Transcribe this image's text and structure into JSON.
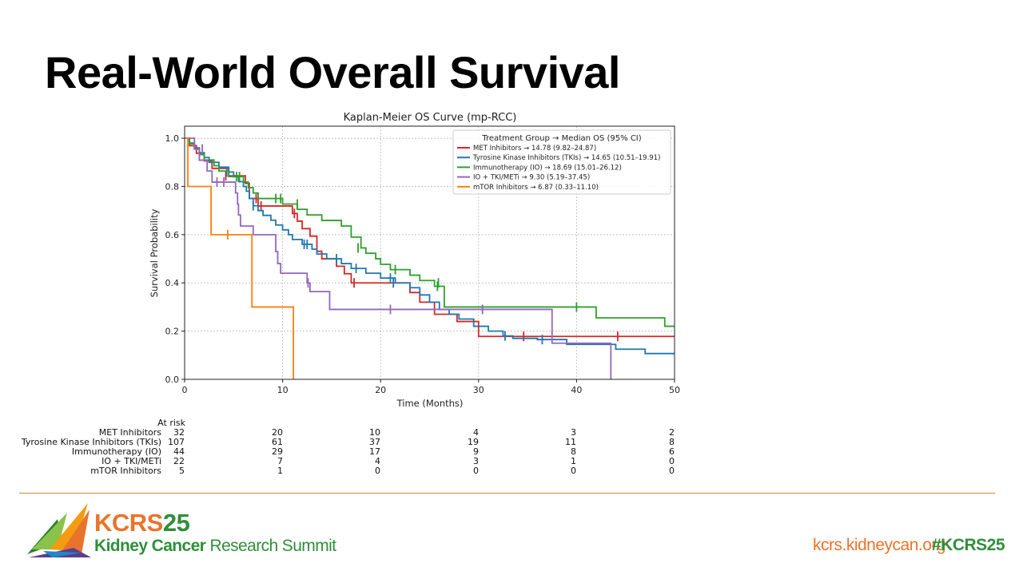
{
  "slide": {
    "title": "Real-World Overall Survival"
  },
  "chart_data": {
    "type": "line",
    "title": "Kaplan-Meier OS Curve (mp-RCC)",
    "xlabel": "Time (Months)",
    "ylabel": "Survival Probability",
    "xlim": [
      0,
      50
    ],
    "ylim": [
      0,
      1.05
    ],
    "xticks": [
      0,
      10,
      20,
      30,
      40,
      50
    ],
    "yticks": [
      0.0,
      0.2,
      0.4,
      0.6,
      0.8,
      1.0
    ],
    "grid": true,
    "legend": {
      "title": "Treatment Group → Median OS (95% CI)",
      "placement": "top-right"
    },
    "series": [
      {
        "name": "MET Inhibitors → 14.78 (9.82–24.87)",
        "color": "#d62728",
        "steps": [
          [
            0,
            1.0
          ],
          [
            0.5,
            0.969
          ],
          [
            1.2,
            0.938
          ],
          [
            2.0,
            0.906
          ],
          [
            2.8,
            0.875
          ],
          [
            4.5,
            0.844
          ],
          [
            6.2,
            0.813
          ],
          [
            6.6,
            0.75
          ],
          [
            7.5,
            0.719
          ],
          [
            11.0,
            0.688
          ],
          [
            11.5,
            0.656
          ],
          [
            12.0,
            0.625
          ],
          [
            12.8,
            0.594
          ],
          [
            13.5,
            0.531
          ],
          [
            14.0,
            0.5
          ],
          [
            15.5,
            0.469
          ],
          [
            16.3,
            0.438
          ],
          [
            17.0,
            0.4
          ],
          [
            23.0,
            0.36
          ],
          [
            24.0,
            0.32
          ],
          [
            25.5,
            0.27
          ],
          [
            27.8,
            0.24
          ],
          [
            30.0,
            0.178
          ],
          [
            50,
            0.178
          ]
        ],
        "censors": [
          [
            1.5,
            0.938
          ],
          [
            4.2,
            0.844
          ],
          [
            7.3,
            0.75
          ],
          [
            7.8,
            0.719
          ],
          [
            11.2,
            0.688
          ],
          [
            17.3,
            0.4
          ],
          [
            34.6,
            0.178
          ],
          [
            44.2,
            0.178
          ]
        ]
      },
      {
        "name": "Tyrosine Kinase Inhibitors (TKIs) → 14.65 (10.51–19.91)",
        "color": "#1f77b4",
        "steps": [
          [
            0,
            1.0
          ],
          [
            0.5,
            0.98
          ],
          [
            1.0,
            0.96
          ],
          [
            1.5,
            0.94
          ],
          [
            2.0,
            0.92
          ],
          [
            2.5,
            0.9
          ],
          [
            3.5,
            0.88
          ],
          [
            4.5,
            0.86
          ],
          [
            5.0,
            0.84
          ],
          [
            5.5,
            0.82
          ],
          [
            6.0,
            0.8
          ],
          [
            6.3,
            0.78
          ],
          [
            6.6,
            0.75
          ],
          [
            7.0,
            0.72
          ],
          [
            7.5,
            0.7
          ],
          [
            8.0,
            0.68
          ],
          [
            8.8,
            0.66
          ],
          [
            9.3,
            0.64
          ],
          [
            10.0,
            0.62
          ],
          [
            10.6,
            0.6
          ],
          [
            11.0,
            0.58
          ],
          [
            12.0,
            0.56
          ],
          [
            13.0,
            0.54
          ],
          [
            13.5,
            0.52
          ],
          [
            14.5,
            0.5
          ],
          [
            16.0,
            0.48
          ],
          [
            17.0,
            0.46
          ],
          [
            18.5,
            0.44
          ],
          [
            20.0,
            0.42
          ],
          [
            21.5,
            0.4
          ],
          [
            23.0,
            0.38
          ],
          [
            24.0,
            0.35
          ],
          [
            25.0,
            0.32
          ],
          [
            26.0,
            0.29
          ],
          [
            27.0,
            0.27
          ],
          [
            28.0,
            0.25
          ],
          [
            29.5,
            0.22
          ],
          [
            31.0,
            0.2
          ],
          [
            32.5,
            0.18
          ],
          [
            33.5,
            0.17
          ],
          [
            36.0,
            0.165
          ],
          [
            39.0,
            0.145
          ],
          [
            44.0,
            0.125
          ],
          [
            47.0,
            0.107
          ],
          [
            50,
            0.107
          ]
        ],
        "censors": [
          [
            4.3,
            0.86
          ],
          [
            7.0,
            0.72
          ],
          [
            12.2,
            0.56
          ],
          [
            12.5,
            0.56
          ],
          [
            15.5,
            0.5
          ],
          [
            17.5,
            0.46
          ],
          [
            21.0,
            0.42
          ],
          [
            21.3,
            0.4
          ],
          [
            32.7,
            0.18
          ],
          [
            36.5,
            0.165
          ]
        ]
      },
      {
        "name": "Immunotherapy (IO) → 18.69 (15.01–26.12)",
        "color": "#2ca02c",
        "steps": [
          [
            0,
            1.0
          ],
          [
            0.5,
            0.977
          ],
          [
            1.0,
            0.955
          ],
          [
            1.5,
            0.932
          ],
          [
            2.0,
            0.91
          ],
          [
            3.0,
            0.886
          ],
          [
            3.5,
            0.864
          ],
          [
            4.5,
            0.841
          ],
          [
            6.0,
            0.818
          ],
          [
            6.5,
            0.795
          ],
          [
            7.0,
            0.773
          ],
          [
            7.5,
            0.75
          ],
          [
            10.0,
            0.727
          ],
          [
            11.5,
            0.705
          ],
          [
            12.5,
            0.682
          ],
          [
            14.0,
            0.659
          ],
          [
            16.0,
            0.636
          ],
          [
            17.0,
            0.59
          ],
          [
            18.0,
            0.545
          ],
          [
            18.5,
            0.523
          ],
          [
            19.5,
            0.5
          ],
          [
            20.0,
            0.477
          ],
          [
            21.0,
            0.455
          ],
          [
            23.0,
            0.432
          ],
          [
            24.0,
            0.41
          ],
          [
            25.5,
            0.386
          ],
          [
            26.5,
            0.3
          ],
          [
            37.5,
            0.3
          ],
          [
            42.0,
            0.255
          ],
          [
            49.0,
            0.22
          ],
          [
            50,
            0.22
          ]
        ],
        "censors": [
          [
            5.3,
            0.841
          ],
          [
            5.6,
            0.841
          ],
          [
            9.3,
            0.75
          ],
          [
            9.8,
            0.75
          ],
          [
            11.5,
            0.727
          ],
          [
            17.7,
            0.545
          ],
          [
            21.5,
            0.455
          ],
          [
            25.8,
            0.386
          ],
          [
            25.9,
            0.4
          ],
          [
            40.0,
            0.3
          ]
        ]
      },
      {
        "name": "IO + TKI/METi → 9.30 (5.19–37.45)",
        "color": "#9467bd",
        "steps": [
          [
            0,
            1.0
          ],
          [
            1.0,
            0.955
          ],
          [
            1.5,
            0.909
          ],
          [
            2.3,
            0.864
          ],
          [
            2.8,
            0.818
          ],
          [
            5.2,
            0.773
          ],
          [
            5.4,
            0.727
          ],
          [
            5.5,
            0.682
          ],
          [
            5.7,
            0.636
          ],
          [
            7.0,
            0.6
          ],
          [
            9.3,
            0.53
          ],
          [
            9.5,
            0.48
          ],
          [
            9.8,
            0.44
          ],
          [
            12.5,
            0.4
          ],
          [
            12.8,
            0.364
          ],
          [
            14.8,
            0.29
          ],
          [
            37.5,
            0.15
          ],
          [
            43.5,
            0.0
          ]
        ],
        "censors": [
          [
            1.8,
            0.955
          ],
          [
            3.3,
            0.818
          ],
          [
            4.0,
            0.818
          ],
          [
            12.6,
            0.4
          ],
          [
            21.0,
            0.29
          ],
          [
            30.4,
            0.29
          ]
        ]
      },
      {
        "name": "mTOR Inhibitors → 6.87 (0.33–11.10)",
        "color": "#ff7f0e",
        "steps": [
          [
            0,
            1.0
          ],
          [
            0.33,
            0.8
          ],
          [
            2.7,
            0.6
          ],
          [
            6.87,
            0.3
          ],
          [
            11.1,
            0.0
          ]
        ],
        "censors": [
          [
            4.4,
            0.6
          ]
        ]
      }
    ],
    "at_risk": {
      "header": "At risk",
      "times": [
        0,
        10,
        20,
        30,
        40,
        50
      ],
      "rows": [
        {
          "label": "MET Inhibitors",
          "values": [
            "32",
            "20",
            "10",
            "4",
            "3",
            "2"
          ]
        },
        {
          "label": "Tyrosine Kinase Inhibitors (TKIs)",
          "values": [
            "107",
            "61",
            "37",
            "19",
            "11",
            "8"
          ]
        },
        {
          "label": "Immunotherapy (IO)",
          "values": [
            "44",
            "29",
            "17",
            "9",
            "8",
            "6"
          ]
        },
        {
          "label": "IO + TKI/METi",
          "values": [
            "22",
            "7",
            "4",
            "3",
            "1",
            "0"
          ]
        },
        {
          "label": "mTOR Inhibitors",
          "values": [
            "5",
            "1",
            "0",
            "0",
            "0",
            "0"
          ]
        }
      ]
    }
  },
  "footer": {
    "brand_kcrs": "KCRS",
    "brand_year": "25",
    "brand_sub_bold": "Kidney Cancer",
    "brand_sub_rest": " Research Summit",
    "url": "kcrs.kidneycan.org",
    "hashtag": "#KCRS25"
  }
}
